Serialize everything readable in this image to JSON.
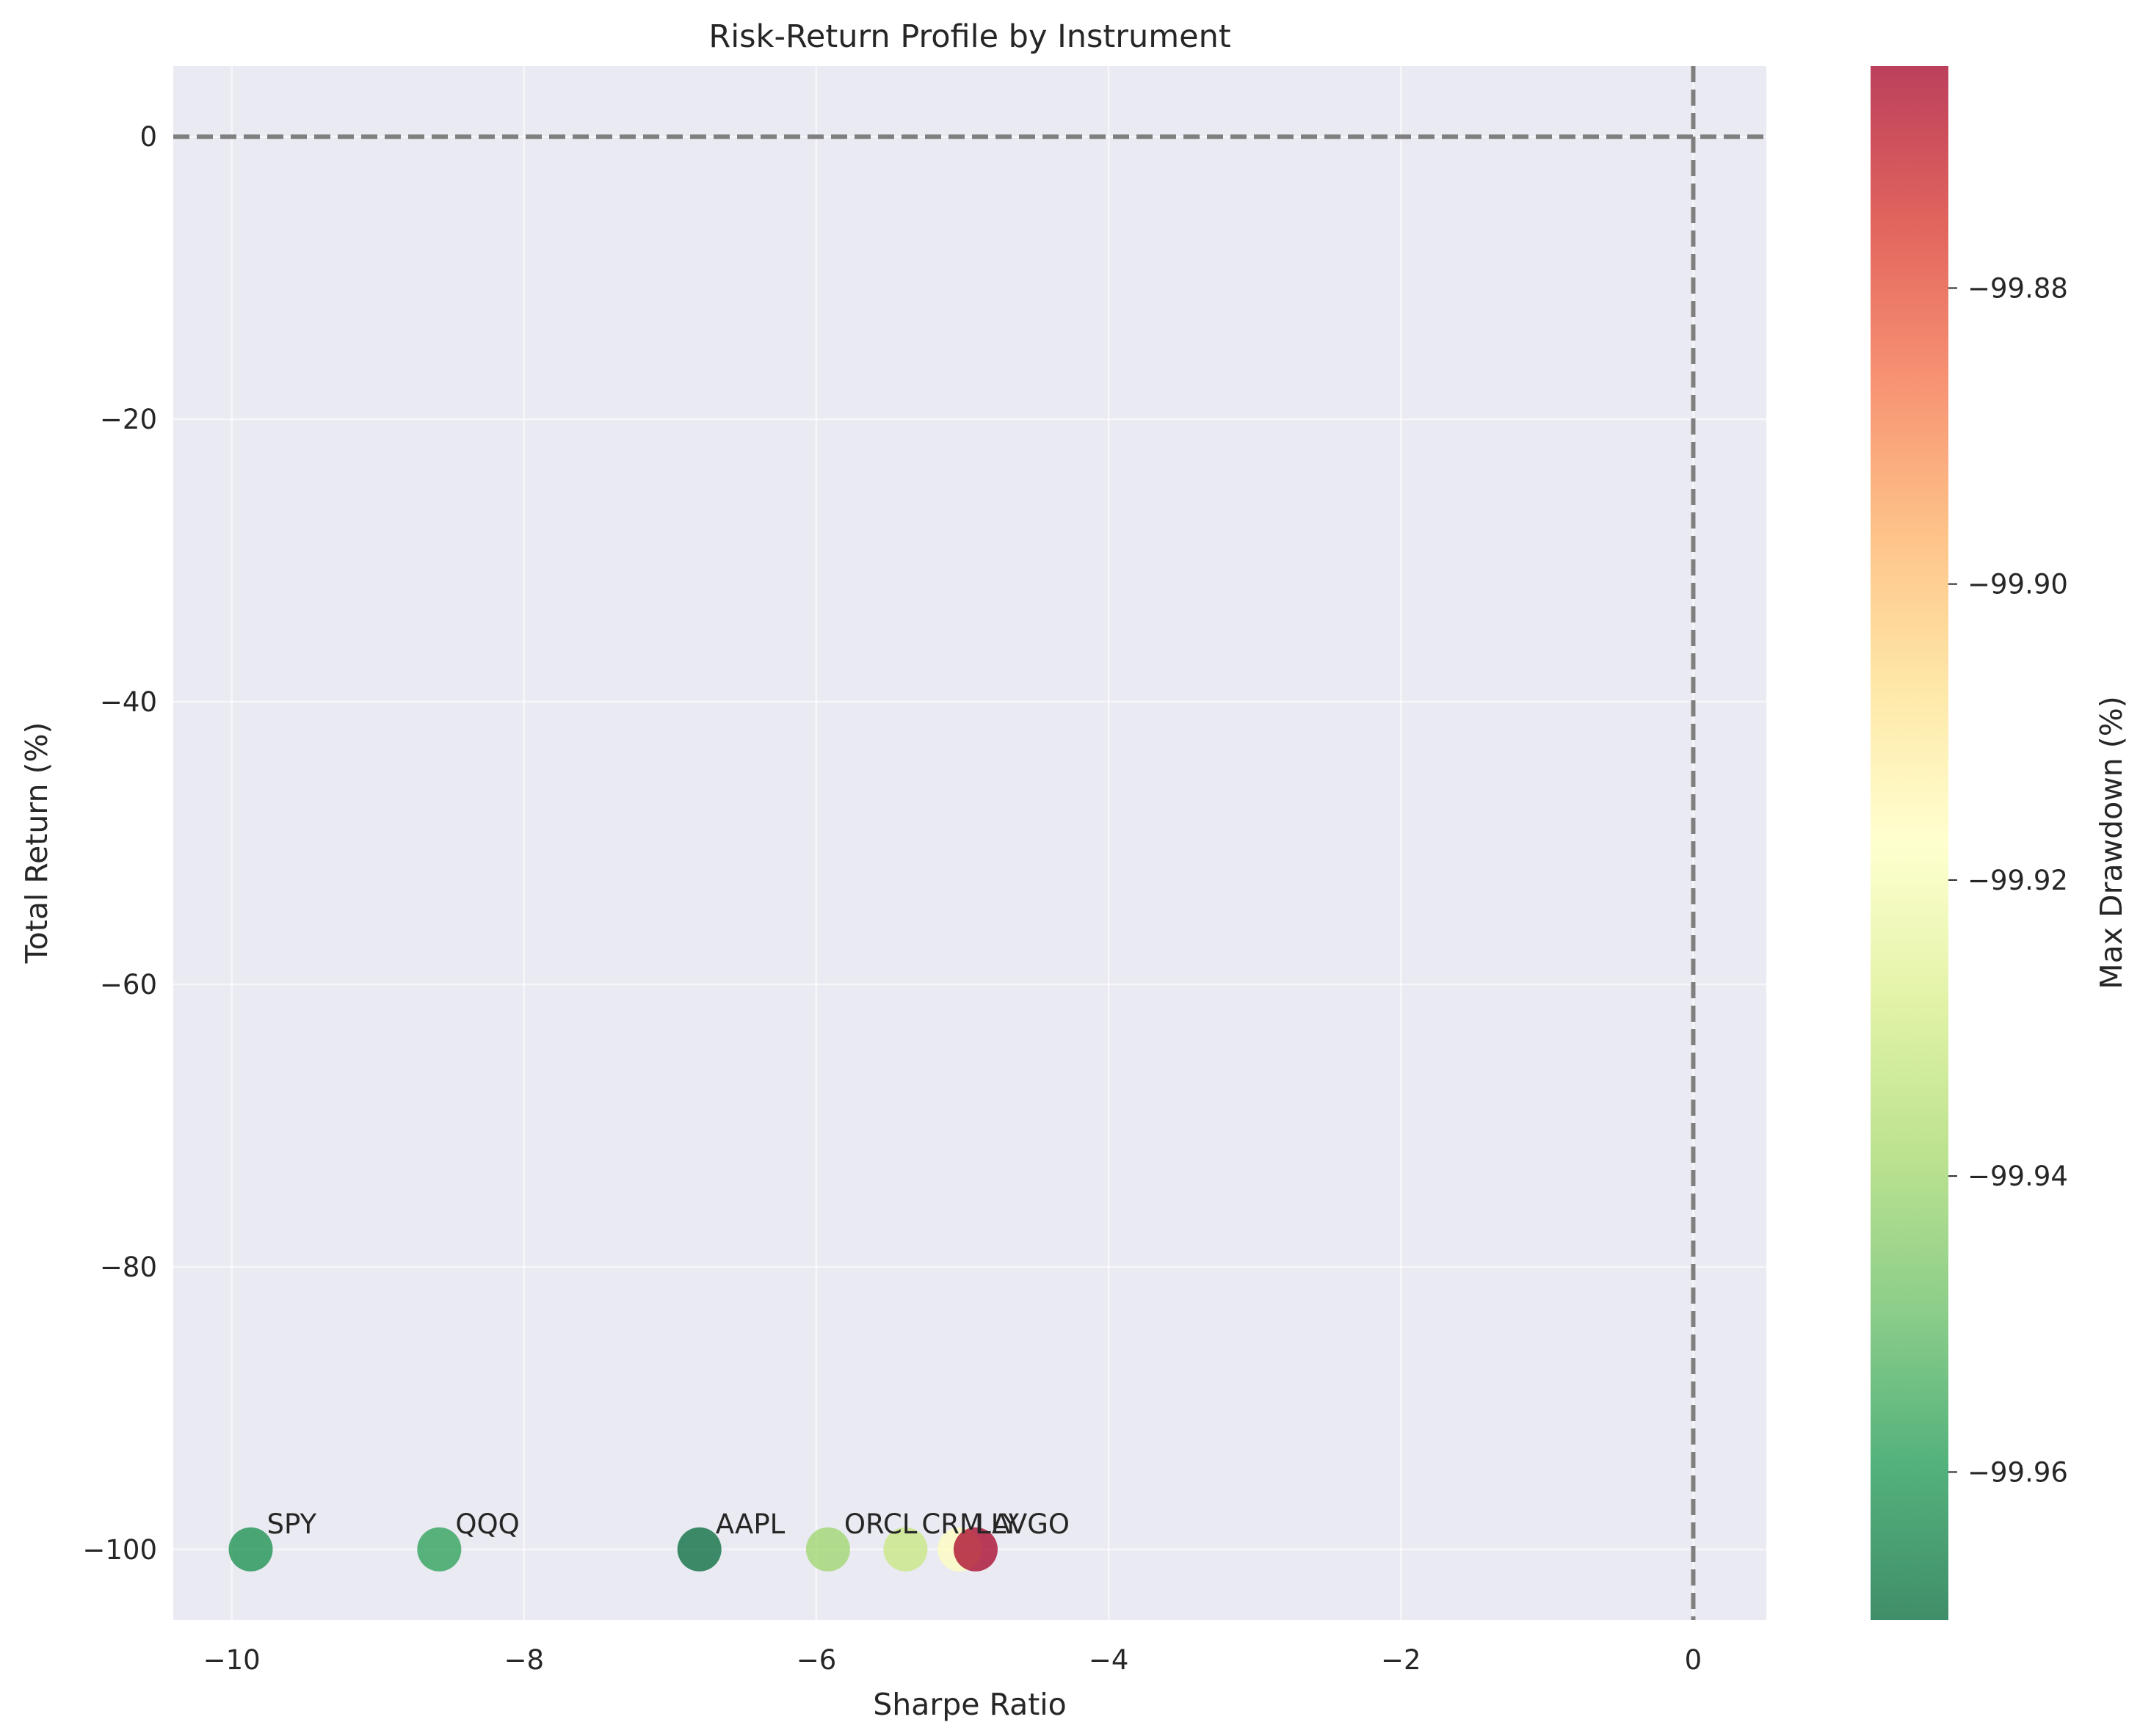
{
  "chart_data": {
    "type": "scatter",
    "title": "Risk-Return Profile by Instrument",
    "xlabel": "Sharpe Ratio",
    "ylabel": "Total Return (%)",
    "xlim": [
      -10.4,
      0.5
    ],
    "ylim": [
      -105,
      5
    ],
    "xticks": [
      -10,
      -8,
      -6,
      -4,
      -2,
      0
    ],
    "yticks": [
      0,
      -20,
      -40,
      -60,
      -80,
      -100
    ],
    "grid": true,
    "reference_lines": {
      "x": 0,
      "y": 0,
      "style": "dashed"
    },
    "points": [
      {
        "label": "SPY",
        "x": -9.87,
        "y": -100,
        "drawdown": -99.962
      },
      {
        "label": "QQQ",
        "x": -8.58,
        "y": -100,
        "drawdown": -99.958
      },
      {
        "label": "AAPL",
        "x": -6.8,
        "y": -100,
        "drawdown": -99.97
      },
      {
        "label": "ORCL",
        "x": -5.92,
        "y": -100,
        "drawdown": -99.94
      },
      {
        "label": "CRM",
        "x": -5.39,
        "y": -100,
        "drawdown": -99.932
      },
      {
        "label": "LLY",
        "x": -5.02,
        "y": -100,
        "drawdown": -99.918
      },
      {
        "label": "AVGO",
        "x": -4.91,
        "y": -100,
        "drawdown": -99.865
      }
    ],
    "colorbar": {
      "label": "Max Drawdown (%)",
      "min": -99.97,
      "max": -99.865,
      "ticks": [
        -99.88,
        -99.9,
        -99.92,
        -99.94,
        -99.96
      ],
      "colormap": "RdYlGn_r",
      "alpha": 0.75
    },
    "colors": {
      "plot_background": "#eaeaf2",
      "grid": "#ffffff",
      "reference_line": "#7f7f7f"
    }
  }
}
